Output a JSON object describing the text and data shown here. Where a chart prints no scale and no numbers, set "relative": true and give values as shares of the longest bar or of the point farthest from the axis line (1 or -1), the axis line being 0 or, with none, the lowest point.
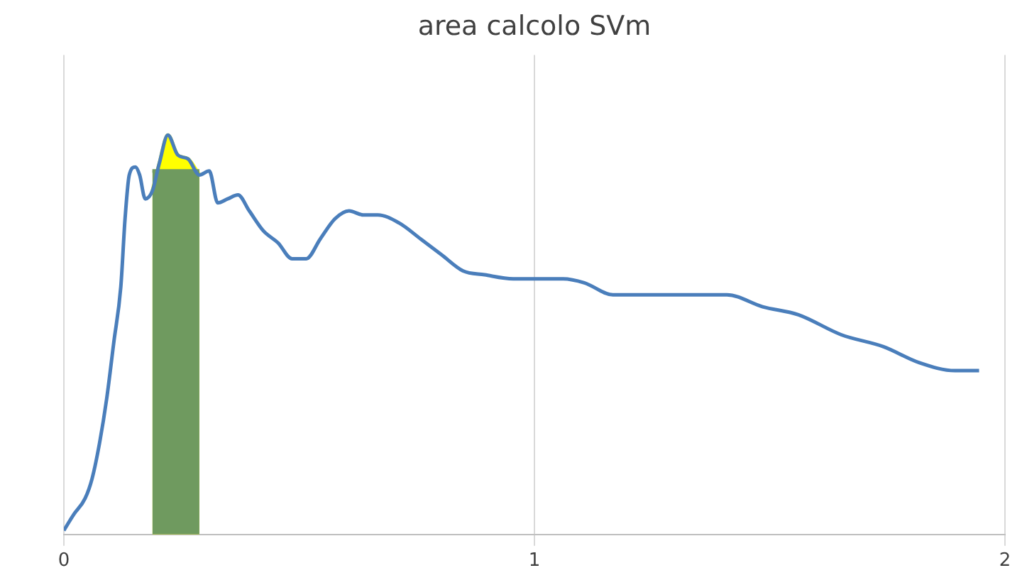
{
  "chart_data": {
    "type": "line",
    "title": "area calcolo SVm",
    "relative": true,
    "grid": "x",
    "legend": false,
    "marker": "none",
    "xlim": [
      0,
      2
    ],
    "xticks": [
      0,
      1,
      2
    ],
    "series": [
      {
        "type": "line",
        "color": "#4a7ebb",
        "x": [
          0,
          0.021,
          0.045,
          0.06,
          0.076,
          0.091,
          0.106,
          0.121,
          0.13,
          0.139,
          0.152,
          0.161,
          0.173,
          0.188,
          0.203,
          0.221,
          0.242,
          0.264,
          0.288,
          0.309,
          0.327,
          0.348,
          0.37,
          0.394,
          0.424,
          0.455,
          0.485,
          0.515,
          0.545,
          0.576,
          0.606,
          0.636,
          0.667,
          0.712,
          0.758,
          0.803,
          0.848,
          0.894,
          0.955,
          1.015,
          1.061,
          1.106,
          1.167,
          1.227,
          1.318,
          1.409,
          1.485,
          1.561,
          1.652,
          1.742,
          1.818,
          1.894,
          1.945
        ],
        "values": [
          0.01,
          0.05,
          0.09,
          0.14,
          0.23,
          0.34,
          0.48,
          0.62,
          0.79,
          0.9,
          0.92,
          0.9,
          0.84,
          0.86,
          0.93,
          1,
          0.95,
          0.94,
          0.9,
          0.91,
          0.83,
          0.84,
          0.85,
          0.81,
          0.76,
          0.73,
          0.69,
          0.69,
          0.74,
          0.79,
          0.81,
          0.8,
          0.8,
          0.78,
          0.74,
          0.7,
          0.66,
          0.65,
          0.64,
          0.64,
          0.64,
          0.63,
          0.6,
          0.6,
          0.6,
          0.6,
          0.57,
          0.55,
          0.5,
          0.47,
          0.43,
          0.41,
          0.41
        ]
      },
      {
        "type": "area",
        "color": "#ffff00",
        "x": [
          0.188,
          0.203,
          0.221,
          0.242,
          0.264,
          0.288
        ],
        "values": [
          0.86,
          0.93,
          1,
          0.95,
          0.94,
          0.9
        ]
      },
      {
        "type": "area",
        "color": "#6f9a5f",
        "x": [
          0.188,
          0.288
        ],
        "values": [
          0.91,
          0.91
        ]
      }
    ]
  }
}
